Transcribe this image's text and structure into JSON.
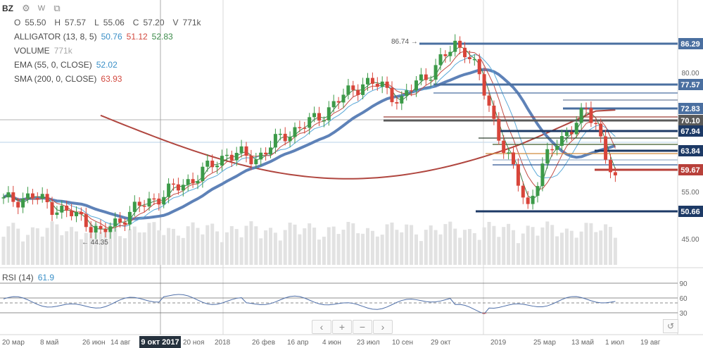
{
  "symbol": "BZ",
  "icons": [
    "gear-icon",
    "w-toggle-icon",
    "layout-icon",
    "eye-icon",
    "settings-icon",
    "close-icon"
  ],
  "ohlc": {
    "o_label": "O",
    "o_value": "55.50",
    "h_label": "H",
    "h_value": "57.57",
    "l_label": "L",
    "l_value": "55.06",
    "c_label": "C",
    "c_value": "57.20",
    "v_label": "V",
    "v_value": "771k"
  },
  "indicators": {
    "alligator": {
      "label": "ALLIGATOR (13, 8, 5)",
      "v1": "50.76",
      "v2": "51.12",
      "v3": "52.83"
    },
    "volume": {
      "label": "VOLUME",
      "value": "771k"
    },
    "ema": {
      "label": "EMA (55, 0, CLOSE)",
      "value": "52.02"
    },
    "sma": {
      "label": "SMA (200, 0, CLOSE)",
      "value": "63.93"
    }
  },
  "rsi": {
    "label": "RSI (14)",
    "value": "61.9",
    "ticks": [
      "90",
      "60",
      "30"
    ]
  },
  "price_axis_ticks": [
    "80.00",
    "55.00",
    "45.00"
  ],
  "price_tags": [
    {
      "value": "86.29",
      "kind": "blue"
    },
    {
      "value": "77.57",
      "kind": "blue"
    },
    {
      "value": "72.83",
      "kind": "blue"
    },
    {
      "value": "70.10",
      "kind": "gray"
    },
    {
      "value": "67.94",
      "kind": "navy"
    },
    {
      "value": "63.84",
      "kind": "navy"
    },
    {
      "value": "59.67",
      "kind": "red"
    },
    {
      "value": "50.66",
      "kind": "navy"
    }
  ],
  "annotations": {
    "high_label": "86.74 →",
    "low_label": "← 44.35"
  },
  "x_axis_labels": [
    "20 мар",
    "8 май",
    "26 июн",
    "14 авг",
    "20 ноя",
    "2018",
    "26 фев",
    "16 апр",
    "4 июн",
    "23 июл",
    "10 сен",
    "29 окт",
    "2019",
    "25 мар",
    "13 май",
    "1 июл",
    "19 авг"
  ],
  "highlight_date": "9 окт 2017",
  "nav_buttons": [
    "‹",
    "+",
    "−",
    "›"
  ],
  "reset_icon": "reset-icon",
  "colors": {
    "up": "#3c9a48",
    "down": "#d8453a",
    "ema": "#5e82b8",
    "sma": "#b0463f",
    "blue_line": "#4a6fa0",
    "navy_line": "#1d3a66",
    "red_line": "#b8403a"
  }
}
